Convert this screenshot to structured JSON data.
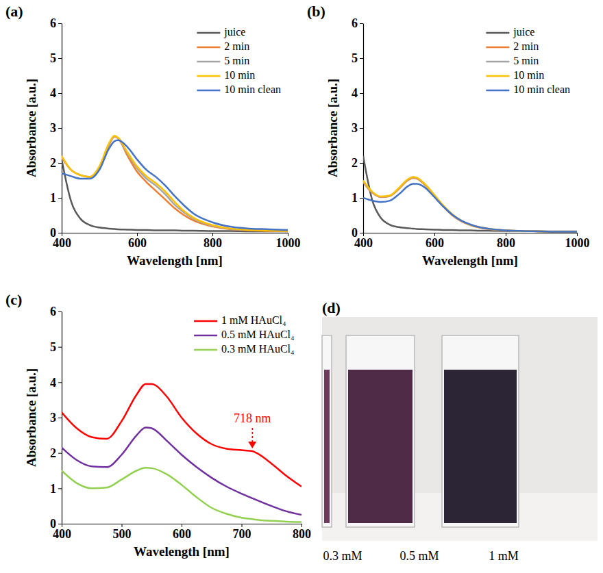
{
  "chart_data": [
    {
      "type": "line",
      "title": "(a)",
      "x_label": "Wavelength [nm]",
      "y_label": "Absorbance [a.u.]",
      "x": [
        400,
        425,
        450,
        475,
        500,
        525,
        540,
        550,
        575,
        600,
        625,
        650,
        675,
        700,
        725,
        750,
        800,
        850,
        900,
        950,
        1000
      ],
      "xlim": [
        400,
        1000
      ],
      "xticks": [
        400,
        600,
        800,
        1000
      ],
      "ylim": [
        0,
        6
      ],
      "yticks": [
        0,
        1,
        2,
        3,
        4,
        5,
        6
      ],
      "legend": "upper right",
      "series": [
        {
          "name": "juice",
          "color": "#595959",
          "values": [
            2.1,
            0.9,
            0.4,
            0.22,
            0.15,
            0.12,
            0.11,
            0.1,
            0.09,
            0.08,
            0.08,
            0.07,
            0.07,
            0.07,
            0.06,
            0.06,
            0.05,
            0.05,
            0.04,
            0.04,
            0.04
          ]
        },
        {
          "name": "2 min",
          "color": "#ed7d31",
          "values": [
            2.15,
            1.8,
            1.65,
            1.6,
            1.85,
            2.5,
            2.75,
            2.7,
            2.2,
            1.75,
            1.45,
            1.2,
            0.95,
            0.7,
            0.5,
            0.35,
            0.18,
            0.1,
            0.07,
            0.05,
            0.04
          ]
        },
        {
          "name": "5 min",
          "color": "#a5a5a5",
          "values": [
            2.18,
            1.8,
            1.65,
            1.6,
            1.88,
            2.52,
            2.76,
            2.71,
            2.26,
            1.85,
            1.55,
            1.35,
            1.1,
            0.8,
            0.58,
            0.4,
            0.2,
            0.11,
            0.08,
            0.06,
            0.05
          ]
        },
        {
          "name": "10 min",
          "color": "#ffc000",
          "values": [
            2.2,
            1.8,
            1.65,
            1.6,
            1.9,
            2.55,
            2.78,
            2.72,
            2.3,
            1.9,
            1.62,
            1.42,
            1.18,
            0.88,
            0.62,
            0.43,
            0.22,
            0.12,
            0.08,
            0.06,
            0.05
          ]
        },
        {
          "name": "10  min clean",
          "color": "#4472c4",
          "values": [
            1.7,
            1.62,
            1.55,
            1.55,
            1.8,
            2.4,
            2.62,
            2.65,
            2.45,
            2.1,
            1.8,
            1.6,
            1.35,
            1.05,
            0.78,
            0.55,
            0.3,
            0.17,
            0.12,
            0.1,
            0.08
          ]
        }
      ]
    },
    {
      "type": "line",
      "title": "(b)",
      "x_label": "Wavelength [nm]",
      "y_label": "Absorbance [a.u.]",
      "x": [
        400,
        425,
        450,
        475,
        500,
        525,
        540,
        550,
        575,
        600,
        625,
        650,
        675,
        700,
        725,
        750,
        800,
        850,
        900,
        950,
        1000
      ],
      "xlim": [
        400,
        1000
      ],
      "xticks": [
        400,
        600,
        800,
        1000
      ],
      "ylim": [
        0,
        6
      ],
      "yticks": [
        0,
        1,
        2,
        3,
        4,
        5,
        6
      ],
      "legend": "upper right",
      "series": [
        {
          "name": "juice",
          "color": "#595959",
          "values": [
            2.2,
            0.95,
            0.42,
            0.23,
            0.16,
            0.13,
            0.12,
            0.11,
            0.1,
            0.09,
            0.08,
            0.08,
            0.07,
            0.07,
            0.06,
            0.06,
            0.05,
            0.05,
            0.04,
            0.04,
            0.04
          ]
        },
        {
          "name": "2 min",
          "color": "#ed7d31",
          "values": [
            1.45,
            1.15,
            1.02,
            1.05,
            1.25,
            1.5,
            1.57,
            1.55,
            1.35,
            1.05,
            0.75,
            0.5,
            0.33,
            0.22,
            0.15,
            0.11,
            0.07,
            0.05,
            0.04,
            0.03,
            0.03
          ]
        },
        {
          "name": "5 min",
          "color": "#a5a5a5",
          "values": [
            1.47,
            1.16,
            1.03,
            1.06,
            1.27,
            1.52,
            1.59,
            1.57,
            1.37,
            1.07,
            0.77,
            0.52,
            0.34,
            0.23,
            0.16,
            0.11,
            0.07,
            0.05,
            0.04,
            0.03,
            0.03
          ]
        },
        {
          "name": "10 min",
          "color": "#ffc000",
          "values": [
            1.5,
            1.18,
            1.04,
            1.07,
            1.28,
            1.53,
            1.6,
            1.58,
            1.38,
            1.08,
            0.78,
            0.53,
            0.35,
            0.23,
            0.16,
            0.12,
            0.07,
            0.05,
            0.04,
            0.03,
            0.03
          ]
        },
        {
          "name": "10 min clean",
          "color": "#4472c4",
          "values": [
            1.0,
            0.92,
            0.88,
            0.92,
            1.1,
            1.33,
            1.4,
            1.4,
            1.28,
            1.02,
            0.75,
            0.52,
            0.35,
            0.24,
            0.16,
            0.12,
            0.07,
            0.05,
            0.04,
            0.03,
            0.03
          ]
        }
      ]
    },
    {
      "type": "line",
      "title": "(c)",
      "x_label": "Wavelength [nm]",
      "y_label": "Absorbance [a.u.]",
      "x": [
        400,
        425,
        450,
        475,
        500,
        525,
        540,
        550,
        575,
        600,
        625,
        650,
        675,
        700,
        718,
        725,
        750,
        775,
        800
      ],
      "xlim": [
        400,
        800
      ],
      "xticks": [
        400,
        500,
        600,
        700,
        800
      ],
      "ylim": [
        0,
        6
      ],
      "yticks": [
        0,
        1,
        2,
        3,
        4,
        5,
        6
      ],
      "legend": "upper right",
      "annotations": [
        {
          "text": "718 nm",
          "x": 718,
          "y": 2.05,
          "color": "#ff0000"
        }
      ],
      "series": [
        {
          "name": "1 mM HAuCl₄",
          "color": "#ff0000",
          "values": [
            3.15,
            2.7,
            2.45,
            2.4,
            2.9,
            3.65,
            3.95,
            3.95,
            3.6,
            3.0,
            2.55,
            2.25,
            2.12,
            2.08,
            2.05,
            2.0,
            1.7,
            1.35,
            1.05
          ]
        },
        {
          "name": "0.5 mM HAuCl₄",
          "color": "#7030a0",
          "values": [
            2.15,
            1.8,
            1.62,
            1.6,
            1.95,
            2.5,
            2.72,
            2.7,
            2.35,
            1.95,
            1.6,
            1.3,
            1.05,
            0.85,
            0.72,
            0.67,
            0.5,
            0.35,
            0.25
          ]
        },
        {
          "name": "0.3 mM  HAuCl₄",
          "color": "#92d050",
          "values": [
            1.5,
            1.15,
            1.0,
            1.02,
            1.25,
            1.5,
            1.58,
            1.57,
            1.4,
            1.1,
            0.75,
            0.45,
            0.28,
            0.17,
            0.13,
            0.11,
            0.08,
            0.06,
            0.05
          ]
        }
      ]
    }
  ],
  "photo": {
    "label": "(d)",
    "captions": [
      "0.3 mM",
      "0.5 mM",
      "1 mM"
    ]
  }
}
